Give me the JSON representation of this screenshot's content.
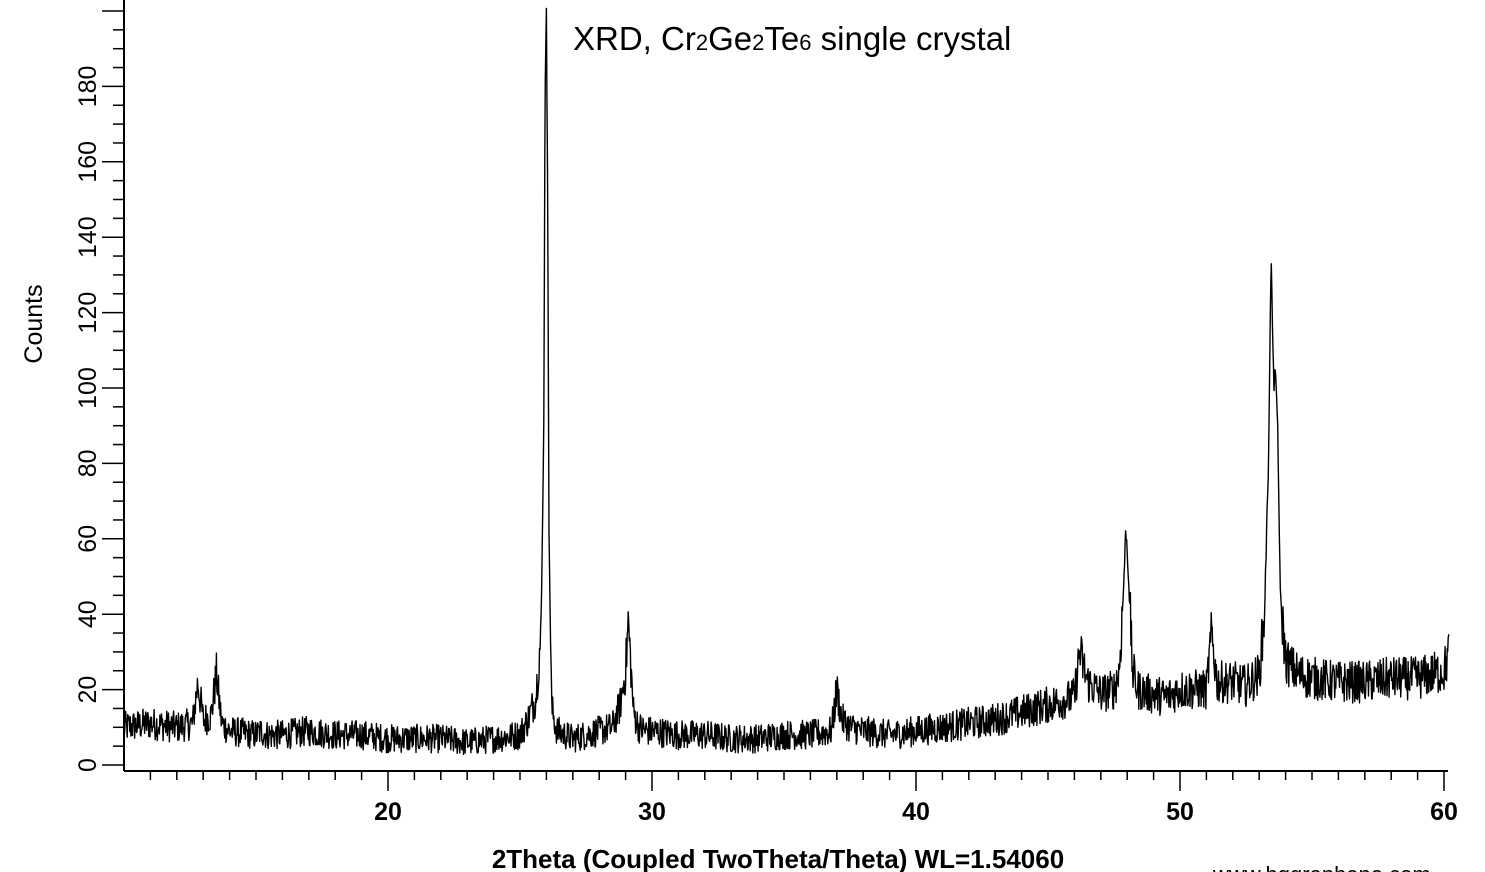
{
  "chart_data": {
    "type": "line",
    "title_parts": [
      "XRD, Cr",
      "2",
      "Ge",
      "2",
      "Te",
      "6",
      " single crystal"
    ],
    "xlabel": "2Theta (Coupled TwoTheta/Theta) WL=1.54060",
    "ylabel": "Counts",
    "xlim": [
      10,
      60.2
    ],
    "ylim": [
      0,
      200
    ],
    "x_ticks": [
      20,
      30,
      40,
      50,
      60
    ],
    "y_ticks": [
      0,
      20,
      40,
      60,
      80,
      100,
      120,
      140,
      160,
      180
    ],
    "grid": false,
    "legend": "none",
    "series": [
      {
        "x": [
          10.0,
          11.0,
          12.0,
          12.6,
          12.8,
          13.0,
          13.3,
          13.5,
          13.7,
          14.0,
          15.0,
          15.2,
          15.4,
          16.0,
          17.0,
          18.0,
          19.0,
          20.0,
          21.0,
          22.0,
          23.0,
          24.0,
          25.0,
          25.3,
          25.6,
          25.8,
          25.9,
          25.95,
          26.0,
          26.05,
          26.1,
          26.2,
          26.4,
          26.7,
          27.0,
          27.5,
          28.0,
          28.5,
          28.8,
          29.0,
          29.1,
          29.2,
          29.3,
          29.5,
          29.8,
          30.0,
          31.0,
          32.0,
          33.0,
          34.0,
          35.0,
          36.0,
          36.8,
          37.0,
          37.2,
          37.5,
          38.0,
          39.0,
          40.0,
          41.0,
          42.0,
          43.0,
          44.0,
          45.0,
          46.0,
          46.2,
          46.5,
          47.0,
          47.5,
          47.7,
          47.85,
          47.95,
          48.05,
          48.2,
          48.4,
          48.8,
          49.5,
          50.0,
          51.0,
          51.2,
          51.4,
          52.0,
          52.5,
          53.0,
          53.2,
          53.35,
          53.45,
          53.55,
          53.6,
          53.7,
          53.8,
          54.0,
          54.2,
          54.5,
          55.0,
          56.0,
          57.0,
          58.0,
          59.0,
          60.0,
          60.2
        ],
        "y": [
          10,
          11,
          10,
          11,
          22,
          12,
          13,
          24,
          11,
          9,
          8,
          9,
          8,
          8,
          9,
          8,
          8,
          7,
          7,
          7,
          6,
          7,
          8,
          12,
          18,
          35,
          90,
          180,
          199,
          150,
          60,
          15,
          9,
          8,
          7,
          8,
          9,
          10,
          16,
          25,
          38,
          26,
          14,
          10,
          9,
          9,
          8,
          8,
          7,
          7,
          8,
          8,
          9,
          20,
          12,
          10,
          9,
          8,
          9,
          10,
          11,
          12,
          14,
          16,
          18,
          30,
          22,
          19,
          20,
          25,
          45,
          63,
          50,
          25,
          20,
          19,
          18,
          20,
          20,
          35,
          22,
          22,
          21,
          24,
          40,
          80,
          135,
          100,
          105,
          90,
          45,
          28,
          26,
          24,
          23,
          22,
          22,
          23,
          23,
          25,
          30
        ]
      }
    ],
    "watermark": "www.hqgraphene.com"
  }
}
